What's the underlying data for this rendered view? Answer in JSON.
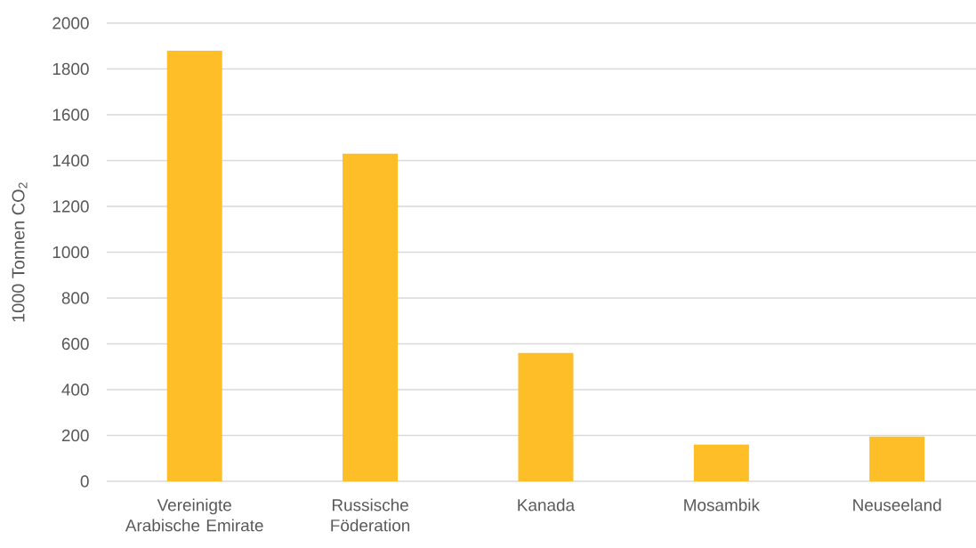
{
  "chart_data": {
    "type": "bar",
    "ylabel": "1000 Tonnen CO$_{2}$",
    "categories": [
      "Vereinigte Arabische Emirate",
      "Russische Föderation",
      "Kanada",
      "Mosambik",
      "Neuseeland"
    ],
    "values": [
      1880,
      1430,
      560,
      160,
      195
    ],
    "color": "#fdbe27",
    "ylim": [
      0,
      2000
    ],
    "yticks": [
      0,
      200,
      400,
      600,
      800,
      1000,
      1200,
      1400,
      1600,
      1800,
      2000
    ],
    "grid": "y"
  }
}
